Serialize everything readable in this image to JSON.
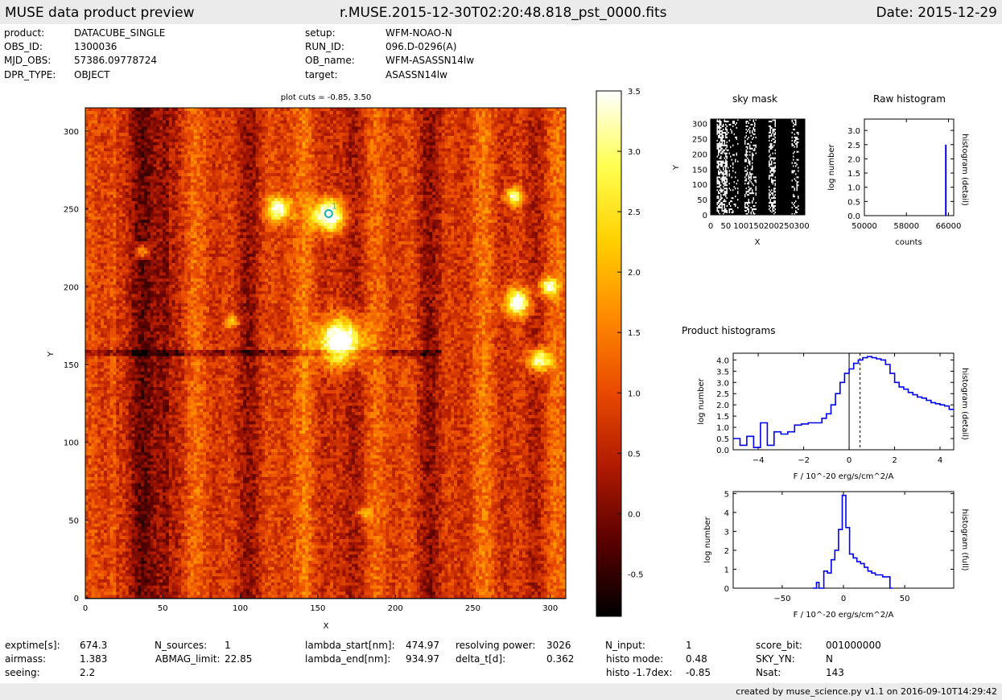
{
  "header": {
    "left": "MUSE data product preview",
    "center": "r.MUSE.2015-12-30T02:20:48.818_pst_0000.fits",
    "right": "Date: 2015-12-29"
  },
  "meta_left": [
    {
      "key": "product:",
      "value": "DATACUBE_SINGLE"
    },
    {
      "key": "OBS_ID:",
      "value": "1300036"
    },
    {
      "key": "MJD_OBS:",
      "value": "57386.09778724"
    },
    {
      "key": "DPR_TYPE:",
      "value": "OBJECT"
    }
  ],
  "meta_right": [
    {
      "key": "setup:",
      "value": "WFM-NOAO-N"
    },
    {
      "key": "RUN_ID:",
      "value": "096.D-0296(A)"
    },
    {
      "key": "OB_name:",
      "value": "WFM-ASASSN14lw"
    },
    {
      "key": "target:",
      "value": "ASASSN14lw"
    }
  ],
  "footer_stats": [
    [
      {
        "key": "exptime[s]:",
        "value": "674.3"
      },
      {
        "key": "airmass:",
        "value": "1.383"
      },
      {
        "key": "seeing:",
        "value": "2.2"
      }
    ],
    [
      {
        "key": "N_sources:",
        "value": "1"
      },
      {
        "key": "ABMAG_limit:",
        "value": "22.85"
      }
    ],
    [
      {
        "key": "lambda_start[nm]:",
        "value": "474.97"
      },
      {
        "key": "lambda_end[nm]:",
        "value": "934.97"
      }
    ],
    [
      {
        "key": "resolving power:",
        "value": "3026"
      },
      {
        "key": "delta_t[d]:",
        "value": "0.362"
      }
    ],
    [
      {
        "key": "N_input:",
        "value": "1"
      },
      {
        "key": "histo mode:",
        "value": "0.48"
      },
      {
        "key": "histo -1.7dex:",
        "value": "-0.85"
      }
    ],
    [
      {
        "key": "score_bit:",
        "value": "001000000"
      },
      {
        "key": "SKY_YN:",
        "value": "N"
      },
      {
        "key": "Nsat:",
        "value": "143"
      }
    ]
  ],
  "credit": "created by muse_science.py v1.1 on 2016-09-10T14:29:42",
  "chart_data": [
    {
      "type": "heatmap",
      "title": "plot cuts = -0.85, 3.50",
      "xlabel": "X",
      "ylabel": "Y",
      "xlim": [
        0,
        310
      ],
      "ylim": [
        0,
        315
      ],
      "xticks": [
        "0",
        "50",
        "100",
        "150",
        "200",
        "250",
        "300"
      ],
      "yticks": [
        "0",
        "50",
        "100",
        "150",
        "200",
        "250",
        "300"
      ],
      "colorbar": {
        "range": [
          -0.85,
          3.5
        ],
        "ticks": [
          "-0.5",
          "0.0",
          "0.5",
          "1.0",
          "1.5",
          "2.0",
          "2.5",
          "3.0",
          "3.5"
        ]
      },
      "colormap": [
        "#000000",
        "#5a0000",
        "#b01a00",
        "#e94a00",
        "#ff8a00",
        "#ffd000",
        "#ffff50",
        "#ffffff"
      ],
      "sources": [
        {
          "x": 157,
          "y": 246,
          "amp": 3.6,
          "sigma": 7
        },
        {
          "x": 125,
          "y": 250,
          "amp": 2.9,
          "sigma": 5.5
        },
        {
          "x": 165,
          "y": 165,
          "amp": 3.8,
          "sigma": 10
        },
        {
          "x": 279,
          "y": 190,
          "amp": 3.0,
          "sigma": 6
        },
        {
          "x": 293,
          "y": 153,
          "amp": 3.0,
          "sigma": 5
        },
        {
          "x": 299,
          "y": 200,
          "amp": 2.6,
          "sigma": 4
        },
        {
          "x": 277,
          "y": 258,
          "amp": 2.6,
          "sigma": 4
        },
        {
          "x": 37,
          "y": 223,
          "amp": 2.0,
          "sigma": 3
        },
        {
          "x": 95,
          "y": 178,
          "amp": 1.5,
          "sigma": 3
        },
        {
          "x": 180,
          "y": 55,
          "amp": 1.5,
          "sigma": 3
        }
      ],
      "marker": {
        "x": 157,
        "y": 247,
        "label": "1",
        "color": "#19b3a8"
      }
    },
    {
      "type": "heatmap",
      "title": "sky mask",
      "xlabel": "X",
      "ylabel": "Y",
      "xlim": [
        0,
        310
      ],
      "ylim": [
        0,
        315
      ],
      "xticks": [
        "0",
        "50",
        "100",
        "150",
        "200",
        "250",
        "300"
      ],
      "yticks": [
        "0",
        "50",
        "100",
        "150",
        "200",
        "250",
        "300"
      ]
    },
    {
      "type": "line",
      "title": "Raw histogram",
      "xlabel": "counts",
      "ylabel": "log number",
      "right_label": "histogram (detail)",
      "xlim": [
        50000,
        67000
      ],
      "ylim": [
        0,
        3.4
      ],
      "xticks": [
        "50000",
        "58000",
        "66000"
      ],
      "yticks": [
        "0.0",
        "0.5",
        "1.0",
        "1.5",
        "2.0",
        "2.5",
        "3.0"
      ],
      "series": [
        {
          "x": [
            65500,
            65500
          ],
          "y": [
            0,
            2.5
          ],
          "color": "#0000ee"
        }
      ]
    },
    {
      "type": "line",
      "title": "Product histograms",
      "xlabel": "F / 10^-20 erg/s/cm^2/A",
      "ylabel": "log number",
      "right_label": "histogram (detail)",
      "xlim": [
        -5.1,
        4.6
      ],
      "ylim": [
        0,
        4.3
      ],
      "xticks": [
        "−4",
        "−2",
        "0",
        "2",
        "4"
      ],
      "yticks": [
        "0.0",
        "0.5",
        "1.0",
        "1.5",
        "2.0",
        "2.5",
        "3.0",
        "3.5",
        "4.0"
      ],
      "vlines": [
        {
          "x": 0,
          "style": "solid"
        },
        {
          "x": 0.48,
          "style": "dashed"
        }
      ],
      "steps": {
        "x": [
          -5.1,
          -4.8,
          -4.5,
          -4.2,
          -3.9,
          -3.6,
          -3.3,
          -3.0,
          -2.7,
          -2.4,
          -2.1,
          -1.8,
          -1.5,
          -1.2,
          -1.0,
          -0.8,
          -0.6,
          -0.4,
          -0.2,
          0,
          0.2,
          0.4,
          0.6,
          0.8,
          1.0,
          1.2,
          1.4,
          1.6,
          1.8,
          2.0,
          2.2,
          2.4,
          2.6,
          2.8,
          3.0,
          3.2,
          3.4,
          3.6,
          3.8,
          4.0,
          4.2,
          4.4
        ],
        "y": [
          0.5,
          0.2,
          0.6,
          0.1,
          1.2,
          0.2,
          0.8,
          0.7,
          0.8,
          1.1,
          1.15,
          1.2,
          1.2,
          1.4,
          1.6,
          2.0,
          2.5,
          3.0,
          3.4,
          3.6,
          3.85,
          4.0,
          4.1,
          4.15,
          4.1,
          4.05,
          4.0,
          3.8,
          3.4,
          3.0,
          2.8,
          2.7,
          2.55,
          2.45,
          2.35,
          2.3,
          2.2,
          2.1,
          2.05,
          2.0,
          1.95,
          1.8
        ],
        "end": 4.6
      }
    },
    {
      "type": "line",
      "xlabel": "F / 10^-20 erg/s/cm^2/A",
      "ylabel": "log number",
      "right_label": "histogram (full)",
      "xlim": [
        -90,
        90
      ],
      "ylim": [
        0,
        5.1
      ],
      "xticks": [
        "−50",
        "0",
        "50"
      ],
      "yticks": [
        "0",
        "1",
        "2",
        "3",
        "4",
        "5"
      ],
      "steps": {
        "x": [
          -25,
          -22,
          -20,
          -16,
          -13,
          -10,
          -7,
          -4,
          -1,
          2,
          5,
          8,
          11,
          14,
          17,
          20,
          23,
          26,
          29,
          32,
          35,
          38
        ],
        "y": [
          0,
          0.3,
          0,
          0.9,
          0.8,
          1.5,
          2.0,
          3.1,
          4.9,
          3.2,
          1.8,
          1.6,
          1.4,
          1.3,
          1.1,
          0.9,
          0.8,
          0.7,
          0.7,
          0.6,
          0.6,
          0
        ],
        "end": 40
      }
    }
  ]
}
